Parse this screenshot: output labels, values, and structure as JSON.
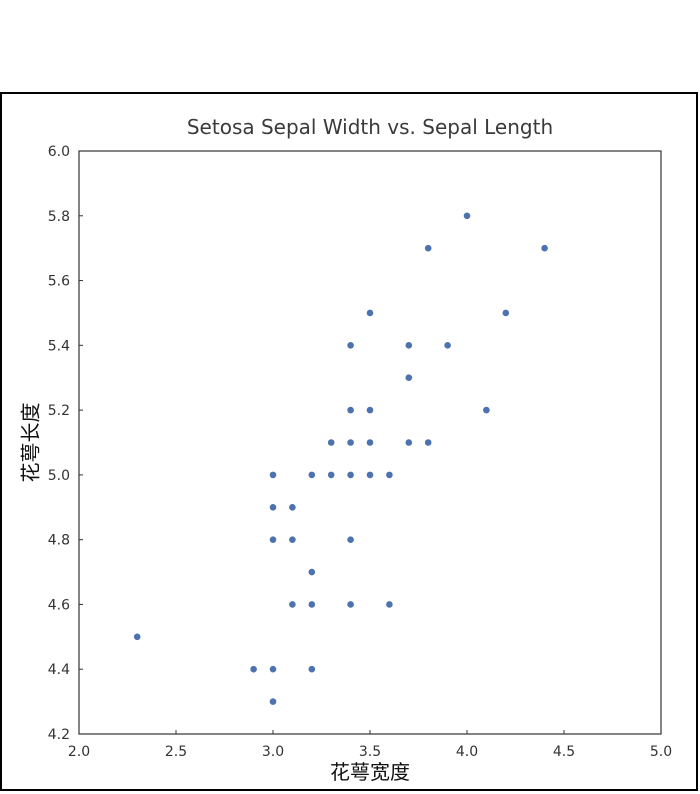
{
  "chart_data": {
    "type": "scatter",
    "title": "Setosa Sepal Width vs. Sepal Length",
    "xlabel": "花萼宽度",
    "ylabel": "花萼长度",
    "xlim": [
      2.0,
      5.0
    ],
    "ylim": [
      4.2,
      6.0
    ],
    "xticks": [
      "2.0",
      "2.5",
      "3.0",
      "3.5",
      "4.0",
      "4.5",
      "5.0"
    ],
    "yticks": [
      "4.2",
      "4.4",
      "4.6",
      "4.8",
      "5.0",
      "5.2",
      "5.4",
      "5.6",
      "5.8",
      "6.0"
    ],
    "grid": false,
    "marker_color": "#4c72b0",
    "points": [
      {
        "x": 2.3,
        "y": 4.5
      },
      {
        "x": 2.9,
        "y": 4.4
      },
      {
        "x": 3.0,
        "y": 4.4
      },
      {
        "x": 3.0,
        "y": 4.3
      },
      {
        "x": 3.2,
        "y": 4.4
      },
      {
        "x": 3.1,
        "y": 4.6
      },
      {
        "x": 3.2,
        "y": 4.6
      },
      {
        "x": 3.4,
        "y": 4.6
      },
      {
        "x": 3.6,
        "y": 4.6
      },
      {
        "x": 3.2,
        "y": 4.7
      },
      {
        "x": 3.0,
        "y": 4.8
      },
      {
        "x": 3.1,
        "y": 4.8
      },
      {
        "x": 3.4,
        "y": 4.8
      },
      {
        "x": 3.0,
        "y": 4.9
      },
      {
        "x": 3.1,
        "y": 4.9
      },
      {
        "x": 3.0,
        "y": 5.0
      },
      {
        "x": 3.2,
        "y": 5.0
      },
      {
        "x": 3.3,
        "y": 5.0
      },
      {
        "x": 3.4,
        "y": 5.0
      },
      {
        "x": 3.5,
        "y": 5.0
      },
      {
        "x": 3.6,
        "y": 5.0
      },
      {
        "x": 3.3,
        "y": 5.1
      },
      {
        "x": 3.4,
        "y": 5.1
      },
      {
        "x": 3.5,
        "y": 5.1
      },
      {
        "x": 3.7,
        "y": 5.1
      },
      {
        "x": 3.8,
        "y": 5.1
      },
      {
        "x": 3.4,
        "y": 5.2
      },
      {
        "x": 3.5,
        "y": 5.2
      },
      {
        "x": 4.1,
        "y": 5.2
      },
      {
        "x": 3.7,
        "y": 5.3
      },
      {
        "x": 3.4,
        "y": 5.4
      },
      {
        "x": 3.7,
        "y": 5.4
      },
      {
        "x": 3.9,
        "y": 5.4
      },
      {
        "x": 3.5,
        "y": 5.5
      },
      {
        "x": 4.2,
        "y": 5.5
      },
      {
        "x": 3.8,
        "y": 5.7
      },
      {
        "x": 4.4,
        "y": 5.7
      },
      {
        "x": 4.0,
        "y": 5.8
      }
    ]
  }
}
